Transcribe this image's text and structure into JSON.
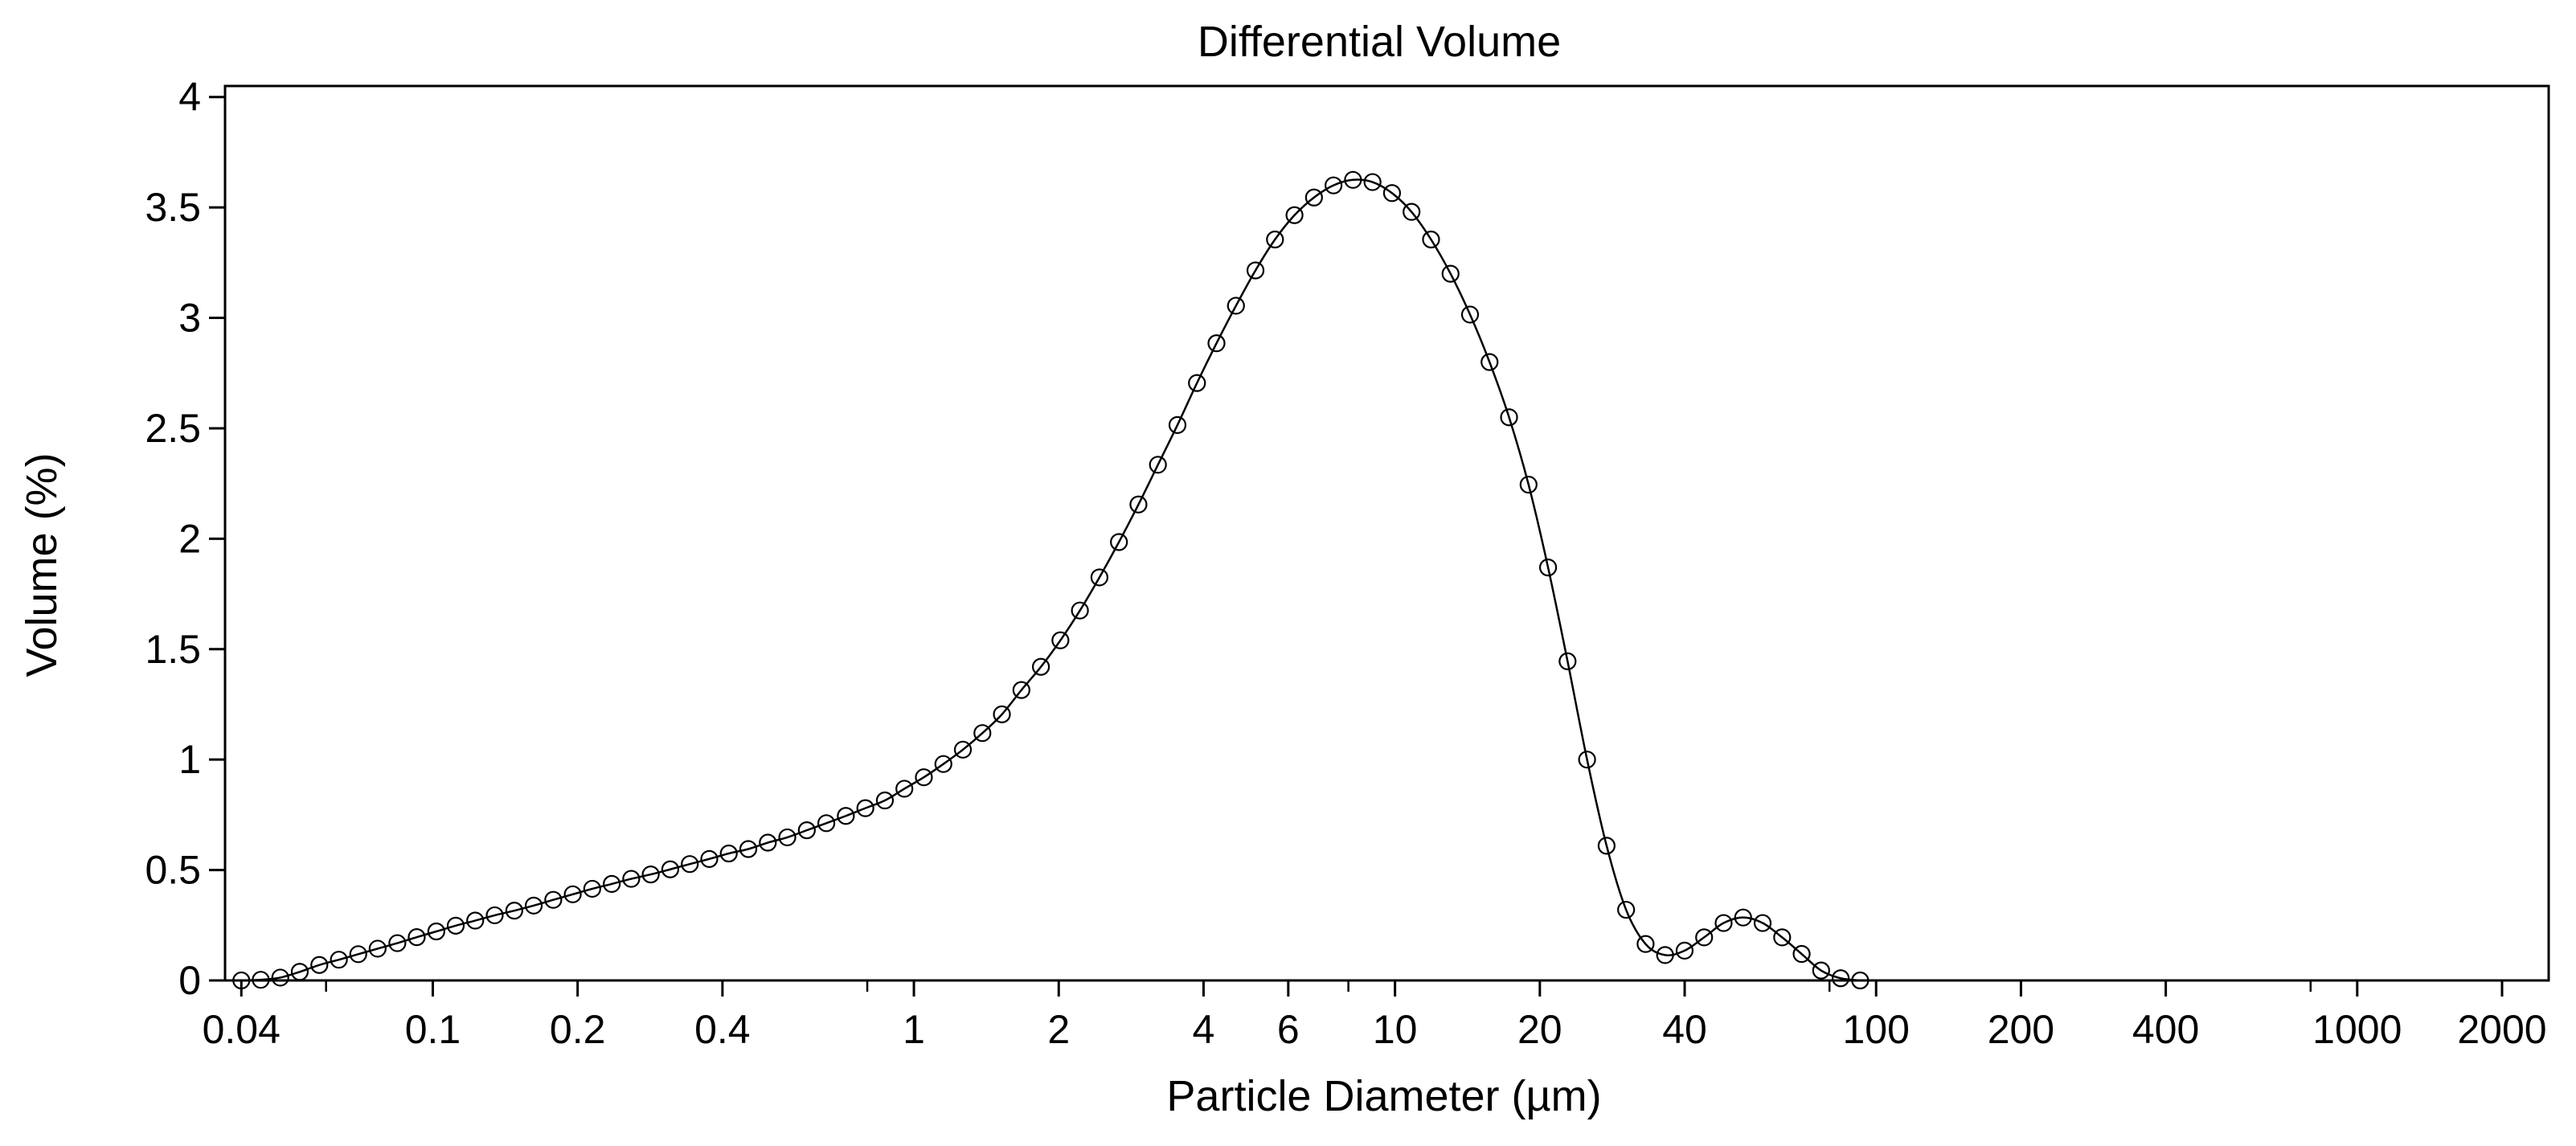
{
  "chart_data": {
    "type": "line",
    "title": "Differential Volume",
    "xlabel": "Particle Diameter (µm)",
    "ylabel": "Volume (%)",
    "x_scale": "log",
    "xlim": [
      0.037,
      2500
    ],
    "ylim": [
      0,
      4.05
    ],
    "grid": false,
    "x_ticks": [
      0.04,
      0.1,
      0.2,
      0.4,
      1,
      2,
      4,
      6,
      10,
      20,
      40,
      100,
      200,
      400,
      1000,
      2000
    ],
    "x_tick_labels": [
      "0.04",
      "0.1",
      "0.2",
      "0.4",
      "1",
      "2",
      "4",
      "6",
      "10",
      "20",
      "40",
      "100",
      "200",
      "400",
      "1000",
      "2000"
    ],
    "x_minor_ticks": [
      0.06,
      0.8,
      8,
      80,
      800
    ],
    "y_ticks": [
      0,
      0.5,
      1,
      1.5,
      2,
      2.5,
      3,
      3.5,
      4
    ],
    "y_tick_labels": [
      "0",
      "0.5",
      "1",
      "1.5",
      "2",
      "2.5",
      "3",
      "3.5",
      "4"
    ],
    "series": [
      {
        "name": "Differential Volume",
        "marker": "open-circle",
        "color": "#000000",
        "x": [
          0.04,
          0.0439,
          0.0482,
          0.0529,
          0.0581,
          0.0638,
          0.07,
          0.0768,
          0.0844,
          0.0926,
          0.1017,
          0.1116,
          0.1225,
          0.1345,
          0.1477,
          0.1621,
          0.178,
          0.1954,
          0.2145,
          0.2355,
          0.2585,
          0.2838,
          0.3116,
          0.3421,
          0.3756,
          0.4123,
          0.4527,
          0.497,
          0.5456,
          0.599,
          0.6576,
          0.722,
          0.7927,
          0.8703,
          0.9554,
          1.0489,
          1.1516,
          1.2643,
          1.388,
          1.5238,
          1.6729,
          1.8366,
          2.0163,
          2.2136,
          2.4302,
          2.668,
          2.9291,
          3.2157,
          3.5304,
          3.8758,
          4.2551,
          4.6714,
          5.1286,
          5.6304,
          6.1813,
          6.7862,
          7.4502,
          8.1792,
          8.9795,
          9.8582,
          10.823,
          11.882,
          13.045,
          14.321,
          15.722,
          17.261,
          18.95,
          20.804,
          22.84,
          25.075,
          27.528,
          30.222,
          33.179,
          36.426,
          39.99,
          43.903,
          48.199,
          52.916,
          58.094,
          63.778,
          70.019,
          76.871,
          84.393,
          92.651
        ],
        "y": [
          0,
          0.003,
          0.013,
          0.039,
          0.07,
          0.094,
          0.119,
          0.144,
          0.169,
          0.196,
          0.222,
          0.248,
          0.271,
          0.295,
          0.316,
          0.339,
          0.365,
          0.39,
          0.415,
          0.437,
          0.46,
          0.48,
          0.503,
          0.527,
          0.55,
          0.575,
          0.595,
          0.624,
          0.648,
          0.68,
          0.712,
          0.745,
          0.78,
          0.815,
          0.868,
          0.92,
          0.98,
          1.045,
          1.12,
          1.205,
          1.315,
          1.42,
          1.54,
          1.675,
          1.825,
          1.985,
          2.155,
          2.335,
          2.515,
          2.705,
          2.885,
          3.055,
          3.215,
          3.355,
          3.465,
          3.545,
          3.6,
          3.625,
          3.615,
          3.565,
          3.48,
          3.355,
          3.2,
          3.015,
          2.8,
          2.55,
          2.245,
          1.87,
          1.445,
          1,
          0.61,
          0.32,
          0.165,
          0.115,
          0.135,
          0.195,
          0.26,
          0.285,
          0.26,
          0.195,
          0.12,
          0.045,
          0.01,
          0
        ]
      }
    ]
  }
}
